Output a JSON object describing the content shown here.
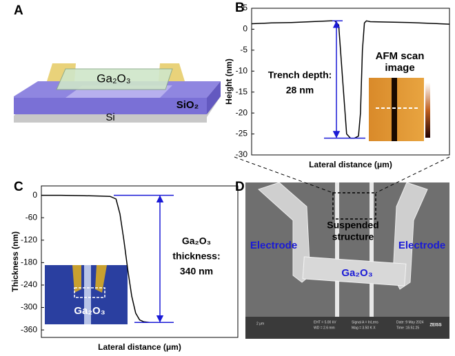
{
  "panel_a": {
    "letter": "A",
    "film": "Ga₂O₃",
    "oxide": "SiO₂",
    "substrate": "Si"
  },
  "panel_d": {
    "letter": "D",
    "suspended": [
      "Suspended",
      "structure"
    ],
    "electrode_left": "Electrode",
    "electrode_right": "Electrode",
    "film": "Ga₂O₃",
    "scale": "2 μm",
    "info": [
      "EHT = 5.00 kV",
      "WD = 2.6 mm",
      "Signal A = InLens",
      "Mag = 3.50 K X",
      "Date :9 May 2024",
      "Time :15:51:25"
    ],
    "brand": "ZEISS"
  },
  "chart_data": [
    {
      "type": "line",
      "letter": "B",
      "ylabel": "Height (nm)",
      "xlabel": "Lateral distance (μm)",
      "annotation": [
        "Trench depth:",
        "28 nm"
      ],
      "inset_title": [
        "AFM scan",
        "image"
      ],
      "x": [
        0,
        10,
        20,
        30,
        40,
        42,
        44,
        46,
        48,
        50,
        52,
        54,
        55,
        56,
        57,
        58,
        60,
        70,
        80,
        90,
        100
      ],
      "series": [
        {
          "name": "Height",
          "color": "#000000",
          "values": [
            1.3,
            1.5,
            1.6,
            1.8,
            2,
            2,
            1,
            -12,
            -25,
            -26,
            -26,
            -25.5,
            -20,
            -5,
            1.5,
            2,
            1.8,
            1.7,
            1.6,
            1.4,
            1.2
          ]
        }
      ],
      "xlim": [
        0,
        100
      ],
      "ylim": [
        -30,
        5
      ],
      "yticks": [
        5,
        0,
        -5,
        -10,
        -15,
        -20,
        -25,
        -30
      ],
      "marker_color": "#1a1ad6"
    },
    {
      "type": "line",
      "letter": "C",
      "ylabel": "Thickness (nm)",
      "xlabel": "Lateral distance (μm)",
      "annotation": [
        "Ga₂O₃",
        "thickness:",
        "340 nm"
      ],
      "inset_title": [
        "Ga₂O₃"
      ],
      "x": [
        0,
        10,
        20,
        30,
        35,
        38,
        40,
        42,
        44,
        46,
        48,
        50,
        52,
        55,
        60,
        67
      ],
      "series": [
        {
          "name": "Thickness",
          "color": "#000000",
          "values": [
            0,
            0,
            -1,
            -2,
            -3,
            -10,
            -50,
            -120,
            -200,
            -270,
            -315,
            -333,
            -338,
            -340,
            -340,
            -340
          ]
        }
      ],
      "xlim": [
        0,
        100
      ],
      "ylim": [
        -380,
        25
      ],
      "yticks": [
        0,
        -60,
        -120,
        -180,
        -240,
        -300,
        -360
      ],
      "marker_color": "#1a1ad6"
    }
  ]
}
